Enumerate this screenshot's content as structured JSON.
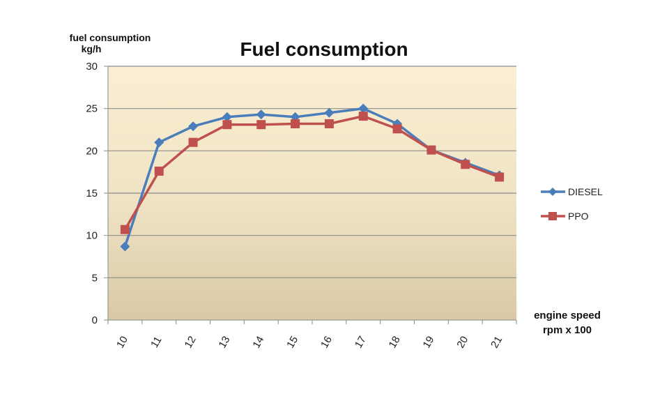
{
  "chart_data": {
    "type": "line",
    "title": "Fuel consumption",
    "ylabel_line1": "fuel consumption",
    "ylabel_line2": "kg/h",
    "xlabel_line1": "engine speed",
    "xlabel_line2": "rpm x 100",
    "categories": [
      "10",
      "11",
      "12",
      "13",
      "14",
      "15",
      "16",
      "17",
      "18",
      "19",
      "20",
      "21"
    ],
    "ylim": [
      0,
      30
    ],
    "yticks": [
      0,
      5,
      10,
      15,
      20,
      25,
      30
    ],
    "grid": true,
    "legend_position": "right",
    "series": [
      {
        "name": "DIESEL",
        "marker": "diamond",
        "color": "#4a7ebb",
        "values": [
          8.7,
          21.0,
          22.9,
          24.0,
          24.3,
          24.0,
          24.5,
          25.0,
          23.2,
          20.1,
          18.6,
          17.1
        ]
      },
      {
        "name": "PPO",
        "marker": "square",
        "color": "#c0504d",
        "values": [
          10.7,
          17.6,
          21.0,
          23.1,
          23.1,
          23.2,
          23.2,
          24.1,
          22.6,
          20.1,
          18.4,
          16.9
        ]
      }
    ]
  }
}
